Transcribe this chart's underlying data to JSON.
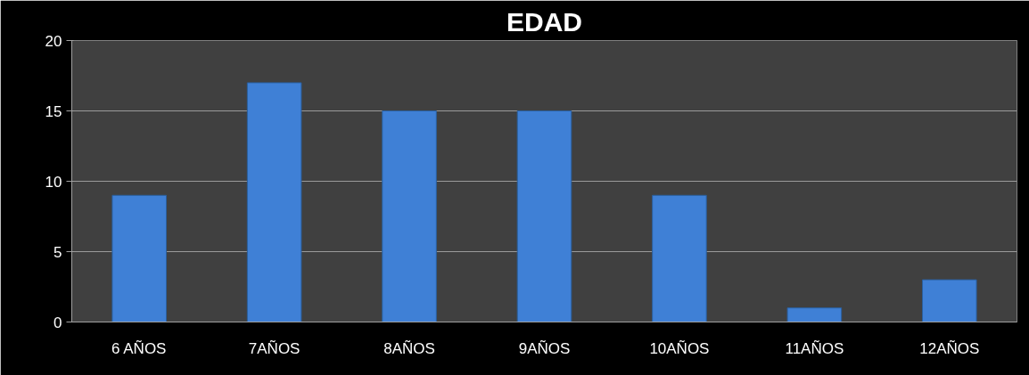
{
  "chart_data": {
    "type": "bar",
    "title": "EDAD",
    "categories": [
      "6 AÑOS",
      "7AÑOS",
      "8AÑOS",
      "9AÑOS",
      "10AÑOS",
      "11AÑOS",
      "12AÑOS"
    ],
    "values": [
      9,
      17,
      15,
      15,
      9,
      1,
      3
    ],
    "color": "#3f80d6",
    "ylim": [
      0,
      20
    ],
    "yticks": [
      0,
      5,
      10,
      15,
      20
    ],
    "grid": "y"
  }
}
